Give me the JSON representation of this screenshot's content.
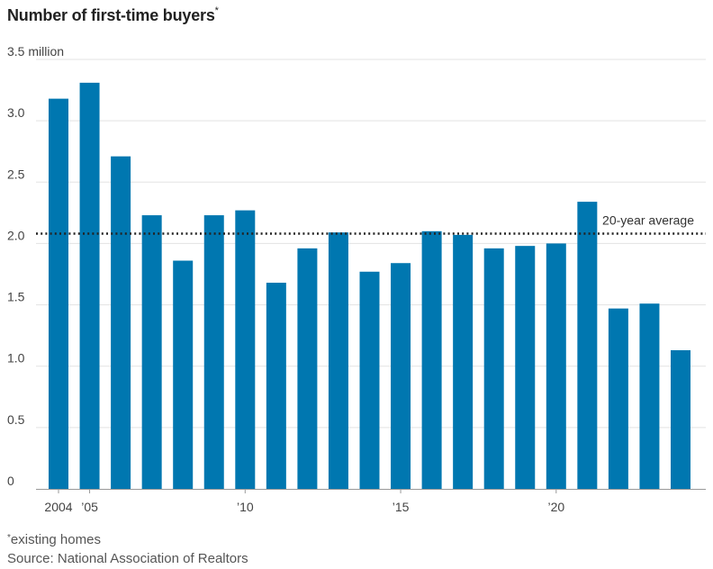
{
  "chart_data": {
    "type": "bar",
    "title": "Number of first-time buyers",
    "title_marker": "*",
    "categories": [
      "2004",
      "2005",
      "2006",
      "2007",
      "2008",
      "2009",
      "2010",
      "2011",
      "2012",
      "2013",
      "2014",
      "2015",
      "2016",
      "2017",
      "2018",
      "2019",
      "2020",
      "2021",
      "2022",
      "2023",
      "2024"
    ],
    "values": [
      3.18,
      3.31,
      2.71,
      2.23,
      1.86,
      2.23,
      2.27,
      1.68,
      1.96,
      2.09,
      1.77,
      1.84,
      2.1,
      2.07,
      1.96,
      1.98,
      2.0,
      2.34,
      1.47,
      1.51,
      1.13
    ],
    "ylim": [
      0,
      3.5
    ],
    "y_ticks": [
      0,
      0.5,
      1.0,
      1.5,
      2.0,
      2.5,
      3.0,
      3.5
    ],
    "y_tick_labels": [
      "0",
      "0.5",
      "1.0",
      "1.5",
      "2.0",
      "2.5",
      "3.0",
      "3.5 million"
    ],
    "x_tick_labels": [
      {
        "category": "2004",
        "label": "2004"
      },
      {
        "category": "2005",
        "label": "’05"
      },
      {
        "category": "2010",
        "label": "’10"
      },
      {
        "category": "2015",
        "label": "’15"
      },
      {
        "category": "2020",
        "label": "’20"
      }
    ],
    "reference_line": {
      "value": 2.08,
      "label": "20-year average"
    },
    "bar_color": "#0077b0",
    "grid": true
  },
  "footnotes": {
    "marker": "*",
    "note": "existing homes",
    "source": "Source: National Association of Realtors"
  }
}
